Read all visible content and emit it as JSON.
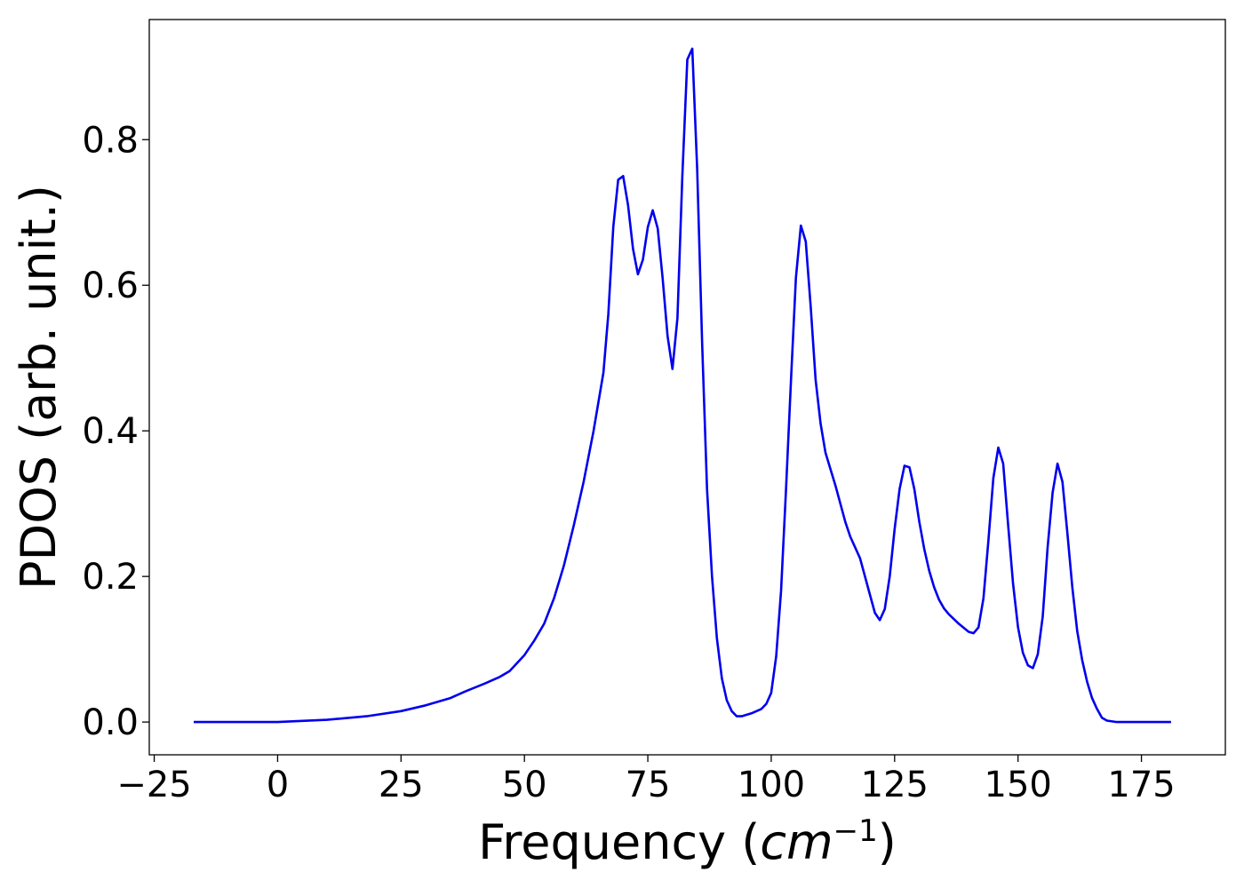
{
  "chart_data": {
    "type": "line",
    "title": "",
    "xlabel_text": "Frequency (",
    "xlabel_math": "cm",
    "xlabel_sup": "−1",
    "xlabel_close": ")",
    "ylabel": "PDOS (arb. unit.)",
    "xlim": [
      -26,
      192
    ],
    "ylim": [
      -0.045,
      0.965
    ],
    "xticks": [
      -25,
      0,
      25,
      50,
      75,
      100,
      125,
      150,
      175
    ],
    "xtick_labels": [
      "−25",
      "0",
      "25",
      "50",
      "75",
      "100",
      "125",
      "150",
      "175"
    ],
    "yticks": [
      0.0,
      0.2,
      0.4,
      0.6,
      0.8
    ],
    "ytick_labels": [
      "0.0",
      "0.2",
      "0.4",
      "0.6",
      "0.8"
    ],
    "grid": false,
    "series": [
      {
        "color": "#0000ee",
        "x": [
          -17,
          0,
          3,
          10,
          18,
          25,
          30,
          35,
          38,
          42,
          45,
          47,
          50,
          52,
          54,
          56,
          58,
          60,
          62,
          64,
          66,
          67,
          68,
          69,
          70,
          71,
          72,
          73,
          74,
          75,
          76,
          77,
          78,
          79,
          80,
          81,
          82,
          83,
          84,
          85,
          86,
          87,
          88,
          89,
          90,
          91,
          92,
          93,
          94,
          96,
          98,
          99,
          100,
          101,
          102,
          103,
          104,
          105,
          106,
          107,
          108,
          109,
          110,
          111,
          113,
          115,
          116,
          118,
          120,
          121,
          122,
          123,
          124,
          125,
          126,
          127,
          128,
          129,
          130,
          131,
          132,
          133,
          134,
          135,
          136,
          138,
          140,
          141,
          142,
          143,
          144,
          145,
          146,
          147,
          148,
          149,
          150,
          151,
          152,
          153,
          154,
          155,
          156,
          157,
          158,
          159,
          160,
          161,
          162,
          163,
          164,
          165,
          166,
          167,
          168,
          170,
          175,
          181
        ],
        "y": [
          0.0,
          0.0,
          0.001,
          0.003,
          0.008,
          0.015,
          0.023,
          0.033,
          0.042,
          0.053,
          0.062,
          0.07,
          0.092,
          0.112,
          0.135,
          0.17,
          0.215,
          0.27,
          0.33,
          0.4,
          0.48,
          0.56,
          0.68,
          0.745,
          0.75,
          0.71,
          0.65,
          0.615,
          0.635,
          0.68,
          0.703,
          0.678,
          0.61,
          0.53,
          0.485,
          0.555,
          0.75,
          0.91,
          0.925,
          0.76,
          0.52,
          0.32,
          0.2,
          0.115,
          0.06,
          0.03,
          0.015,
          0.008,
          0.008,
          0.012,
          0.018,
          0.025,
          0.04,
          0.09,
          0.18,
          0.32,
          0.47,
          0.61,
          0.682,
          0.66,
          0.57,
          0.47,
          0.41,
          0.37,
          0.325,
          0.275,
          0.255,
          0.225,
          0.175,
          0.15,
          0.14,
          0.155,
          0.2,
          0.265,
          0.32,
          0.352,
          0.35,
          0.32,
          0.275,
          0.238,
          0.208,
          0.185,
          0.168,
          0.156,
          0.148,
          0.135,
          0.124,
          0.122,
          0.13,
          0.17,
          0.25,
          0.335,
          0.377,
          0.355,
          0.27,
          0.19,
          0.13,
          0.095,
          0.078,
          0.074,
          0.093,
          0.145,
          0.24,
          0.315,
          0.355,
          0.33,
          0.26,
          0.185,
          0.125,
          0.085,
          0.055,
          0.033,
          0.018,
          0.006,
          0.002,
          0.0,
          0.0,
          0.0
        ]
      }
    ]
  }
}
